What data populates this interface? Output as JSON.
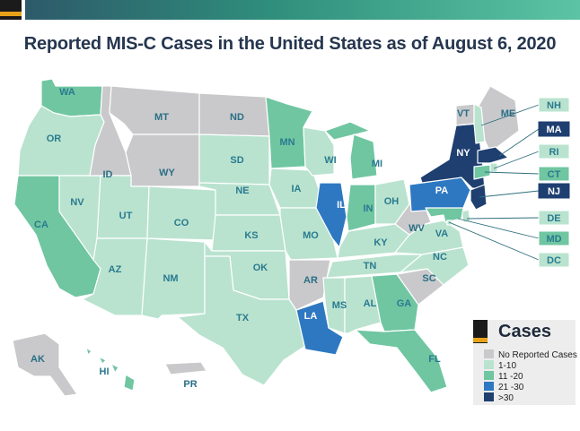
{
  "title": "Reported MIS-C Cases in the United States as of August 6, 2020",
  "colors": {
    "none": "#c9c9cb",
    "c1_10": "#b9e3cf",
    "c11_20": "#6fc6a1",
    "c21_30": "#2e78c2",
    "c30plus": "#1e3f70",
    "label_teal": "#2a7a8f"
  },
  "legend": {
    "title": "Cases",
    "items": [
      {
        "label": "No Reported Cases",
        "color": "#c9c9cb"
      },
      {
        "label": "1-10",
        "color": "#b9e3cf"
      },
      {
        "label": "11 -20",
        "color": "#6fc6a1"
      },
      {
        "label": "21 -30",
        "color": "#2e78c2"
      },
      {
        "label": ">30",
        "color": "#1e3f70"
      }
    ]
  },
  "states": {
    "WA": "11-20",
    "OR": "1-10",
    "CA": "11-20",
    "NV": "1-10",
    "ID": "none",
    "MT": "none",
    "WY": "none",
    "UT": "1-10",
    "AZ": "1-10",
    "NM": "1-10",
    "CO": "1-10",
    "ND": "none",
    "SD": "1-10",
    "NE": "1-10",
    "KS": "1-10",
    "OK": "1-10",
    "TX": "1-10",
    "MN": "11-20",
    "IA": "1-10",
    "MO": "1-10",
    "AR": "none",
    "LA": "21-30",
    "WI": "1-10",
    "IL": "21-30",
    "MI": "11-20",
    "IN": "11-20",
    "OH": "1-10",
    "KY": "1-10",
    "TN": "1-10",
    "MS": "1-10",
    "AL": "1-10",
    "GA": "11-20",
    "FL": "11-20",
    "SC": "none",
    "NC": "1-10",
    "VA": "1-10",
    "WV": "none",
    "PA": "21-30",
    "NY": ">30",
    "VT": "none",
    "ME": "none",
    "NH": "1-10",
    "MA": ">30",
    "RI": "1-10",
    "CT": "11-20",
    "NJ": ">30",
    "DE": "1-10",
    "MD": "11-20",
    "DC": "1-10",
    "AK": "none",
    "HI": "11-20",
    "PR": "none"
  },
  "callouts": [
    "NH",
    "MA",
    "RI",
    "CT",
    "NJ",
    "DE",
    "MD",
    "DC"
  ],
  "labels_inline": [
    "WA",
    "OR",
    "CA",
    "NV",
    "ID",
    "MT",
    "WY",
    "UT",
    "AZ",
    "NM",
    "CO",
    "ND",
    "SD",
    "NE",
    "KS",
    "OK",
    "TX",
    "MN",
    "IA",
    "MO",
    "AR",
    "LA",
    "WI",
    "IL",
    "MI",
    "IN",
    "OH",
    "KY",
    "TN",
    "MS",
    "AL",
    "GA",
    "FL",
    "SC",
    "NC",
    "VA",
    "WV",
    "PA",
    "NY",
    "VT",
    "ME",
    "AK",
    "HI",
    "PR"
  ]
}
